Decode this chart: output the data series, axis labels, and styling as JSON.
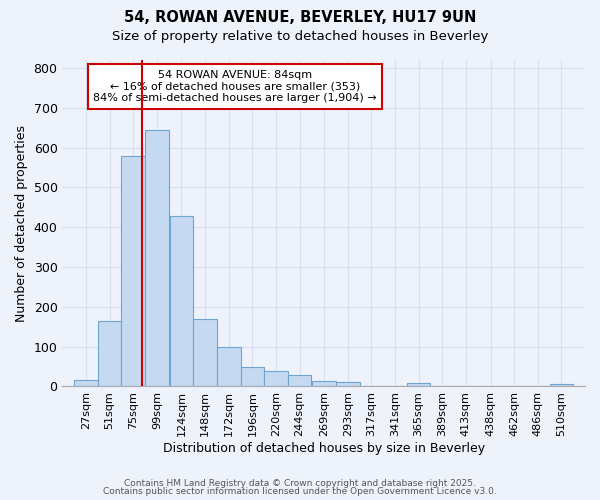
{
  "title1": "54, ROWAN AVENUE, BEVERLEY, HU17 9UN",
  "title2": "Size of property relative to detached houses in Beverley",
  "xlabel": "Distribution of detached houses by size in Beverley",
  "ylabel": "Number of detached properties",
  "bin_labels": [
    "27sqm",
    "51sqm",
    "75sqm",
    "99sqm",
    "124sqm",
    "148sqm",
    "172sqm",
    "196sqm",
    "220sqm",
    "244sqm",
    "269sqm",
    "293sqm",
    "317sqm",
    "341sqm",
    "365sqm",
    "389sqm",
    "413sqm",
    "438sqm",
    "462sqm",
    "486sqm",
    "510sqm"
  ],
  "bar_heights": [
    17,
    165,
    580,
    645,
    428,
    170,
    100,
    50,
    38,
    30,
    13,
    12,
    0,
    0,
    8,
    0,
    0,
    0,
    0,
    0,
    7
  ],
  "bar_color": "#c5d9f1",
  "bar_edge_color": "#6ea6d0",
  "annotation_text": "54 ROWAN AVENUE: 84sqm\n← 16% of detached houses are smaller (353)\n84% of semi-detached houses are larger (1,904) →",
  "annotation_box_color": "white",
  "annotation_box_edge": "#cc0000",
  "red_line_color": "#cc0000",
  "ylim": [
    0,
    820
  ],
  "yticks": [
    0,
    100,
    200,
    300,
    400,
    500,
    600,
    700,
    800
  ],
  "bg_color": "#eef2fb",
  "grid_color": "#d8dff0",
  "footer1": "Contains HM Land Registry data © Crown copyright and database right 2025.",
  "footer2": "Contains public sector information licensed under the Open Government Licence v3.0.",
  "title1_fontsize": 10.5,
  "title2_fontsize": 9.5,
  "annotation_fontsize": 8,
  "axis_label_fontsize": 9,
  "tick_fontsize": 8,
  "footer_fontsize": 6.5
}
